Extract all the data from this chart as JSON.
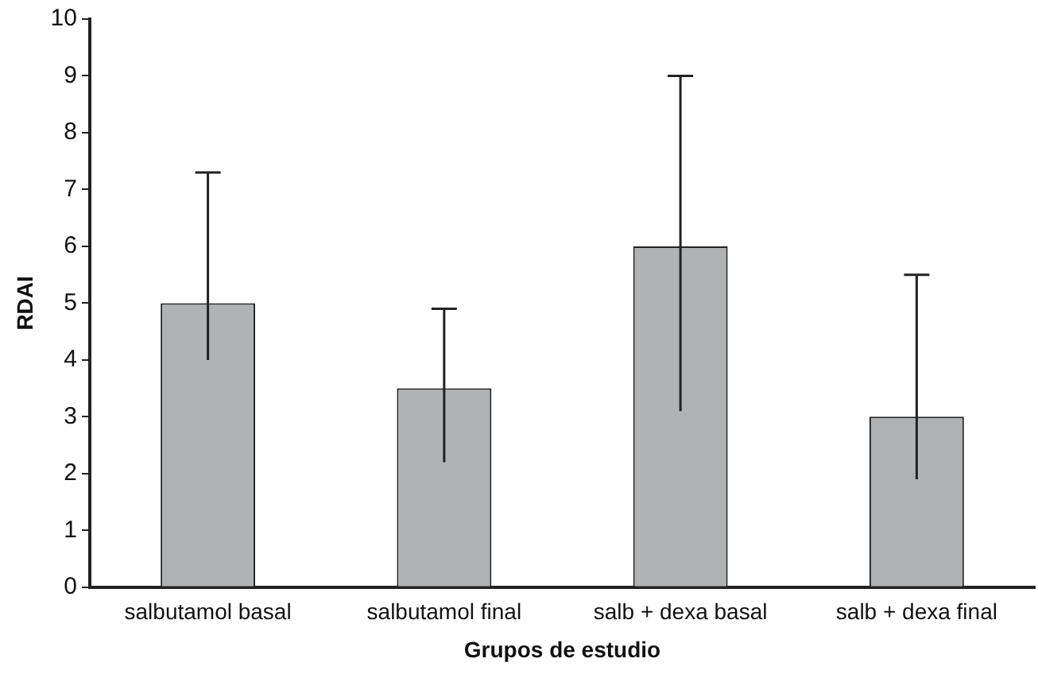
{
  "chart_data": {
    "type": "bar",
    "xlabel": "Grupos de estudio",
    "ylabel": "RDAI",
    "categories": [
      "salbutamol basal",
      "salbutamol final",
      "salb + dexa basal",
      "salb + dexa final"
    ],
    "values": [
      5,
      3.5,
      6,
      3
    ],
    "errors": [
      [
        4.0,
        7.3
      ],
      [
        2.2,
        4.9
      ],
      [
        3.1,
        9.0
      ],
      [
        1.9,
        5.5
      ]
    ],
    "color": "#b1b2b4",
    "ylim": [
      0,
      10
    ],
    "yticks": [
      0,
      1,
      2,
      3,
      4,
      5,
      6,
      7,
      8,
      9,
      10
    ],
    "grid": false,
    "legend": false
  }
}
